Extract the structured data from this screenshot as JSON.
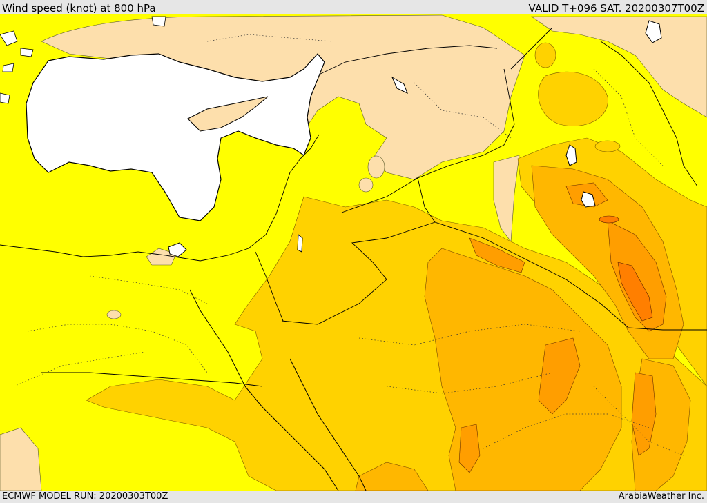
{
  "header": {
    "title": "Wind speed (knot) at 800 hPa",
    "valid": "VALID T+096 SAT. 20200307T00Z"
  },
  "footer": {
    "model_run": "ECMWF MODEL RUN: 20200303T00Z",
    "brand": "ArabiaWeather Inc."
  },
  "colors": {
    "bands_light_to_strong": [
      "#ffffff",
      "#fddfac",
      "#ffff00",
      "#ffd200",
      "#ffb700",
      "#ff9e00",
      "#ff7f00"
    ],
    "frame": "#e6e6e6",
    "border_line": "#000000"
  }
}
